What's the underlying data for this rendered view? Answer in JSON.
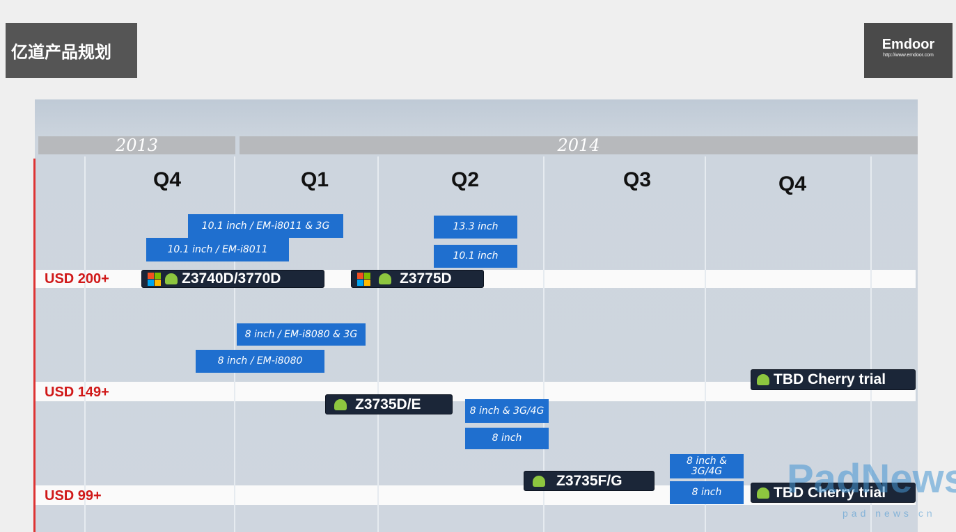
{
  "header": {
    "title": "亿道产品规划",
    "logo": "Emdoor",
    "logo_url": "http://www.emdoor.com"
  },
  "years": [
    "2013",
    "2014"
  ],
  "quarters": [
    "Q4",
    "Q1",
    "Q2",
    "Q3",
    "Q4"
  ],
  "tiers": [
    "USD 200+",
    "USD 149+",
    "USD 99+"
  ],
  "chips": [
    "Z3740D/3770D",
    "Z3775D",
    "Z3735D/E",
    "Z3735F/G",
    "TBD Cherry trial",
    "TBD Cherry trial"
  ],
  "products": [
    "10.1 inch / EM-i8011 & 3G",
    "10.1 inch / EM-i8011",
    "13.3 inch",
    "10.1 inch",
    "8 inch / EM-i8080 & 3G",
    "8 inch / EM-i8080",
    "8 inch & 3G/4G",
    "8 inch",
    "8 inch & 3G/4G",
    "8 inch"
  ],
  "watermark": {
    "brand": "PadNews",
    "site": "pad news cn"
  }
}
